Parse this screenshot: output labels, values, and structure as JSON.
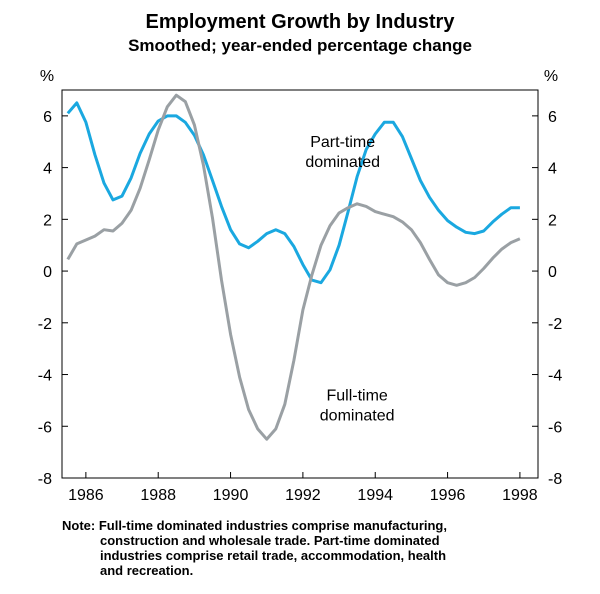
{
  "chart_data": {
    "type": "line",
    "title": "Employment Growth by Industry",
    "subtitle": "Smoothed; year-ended percentage change",
    "y_unit": "%",
    "x": [
      1985.5,
      1985.75,
      1986,
      1986.25,
      1986.5,
      1986.75,
      1987,
      1987.25,
      1987.5,
      1987.75,
      1988,
      1988.25,
      1988.5,
      1988.75,
      1989,
      1989.25,
      1989.5,
      1989.75,
      1990,
      1990.25,
      1990.5,
      1990.75,
      1991,
      1991.25,
      1991.5,
      1991.75,
      1992,
      1992.25,
      1992.5,
      1992.75,
      1993,
      1993.25,
      1993.5,
      1993.75,
      1994,
      1994.25,
      1994.5,
      1994.75,
      1995,
      1995.25,
      1995.5,
      1995.75,
      1996,
      1996.25,
      1996.5,
      1996.75,
      1997,
      1997.25,
      1997.5,
      1997.75,
      1998
    ],
    "series": [
      {
        "name": "Part-time dominated",
        "color": "#1aa8e0",
        "values": [
          6.1,
          6.5,
          5.75,
          4.5,
          3.4,
          2.75,
          2.9,
          3.6,
          4.55,
          5.3,
          5.8,
          6.0,
          6.0,
          5.75,
          5.25,
          4.5,
          3.5,
          2.5,
          1.6,
          1.05,
          0.9,
          1.15,
          1.45,
          1.6,
          1.45,
          0.95,
          0.25,
          -0.35,
          -0.45,
          0.05,
          1.0,
          2.3,
          3.65,
          4.7,
          5.3,
          5.75,
          5.75,
          5.2,
          4.35,
          3.5,
          2.85,
          2.35,
          1.95,
          1.7,
          1.5,
          1.45,
          1.55,
          1.9,
          2.2,
          2.45,
          2.45
        ]
      },
      {
        "name": "Full-time dominated",
        "color": "#9aa0a4",
        "values": [
          0.45,
          1.05,
          1.2,
          1.35,
          1.6,
          1.55,
          1.85,
          2.35,
          3.2,
          4.3,
          5.45,
          6.35,
          6.8,
          6.55,
          5.65,
          4.1,
          2.05,
          -0.35,
          -2.45,
          -4.1,
          -5.35,
          -6.1,
          -6.5,
          -6.1,
          -5.15,
          -3.45,
          -1.5,
          -0.15,
          1.0,
          1.75,
          2.25,
          2.45,
          2.6,
          2.5,
          2.3,
          2.2,
          2.1,
          1.9,
          1.6,
          1.1,
          0.45,
          -0.15,
          -0.45,
          -0.55,
          -0.45,
          -0.25,
          0.1,
          0.5,
          0.85,
          1.1,
          1.25
        ]
      }
    ],
    "annotations": [
      {
        "lines": [
          "Part-time",
          "dominated"
        ],
        "x": 1993.1,
        "y": 4.8
      },
      {
        "lines": [
          "Full-time",
          "dominated"
        ],
        "x": 1993.5,
        "y": -5.0
      }
    ],
    "xlim": [
      1985.34,
      1998.5
    ],
    "xticks": [
      1986,
      1988,
      1990,
      1992,
      1994,
      1996,
      1998
    ],
    "ylim": [
      -8,
      7
    ],
    "yticks": [
      -8,
      -6,
      -4,
      -2,
      0,
      2,
      4,
      6
    ],
    "note": [
      "Note: Full-time dominated industries comprise manufacturing,",
      "construction and wholesale trade. Part-time dominated",
      "industries comprise retail trade, accommodation, health",
      "and recreation."
    ]
  }
}
